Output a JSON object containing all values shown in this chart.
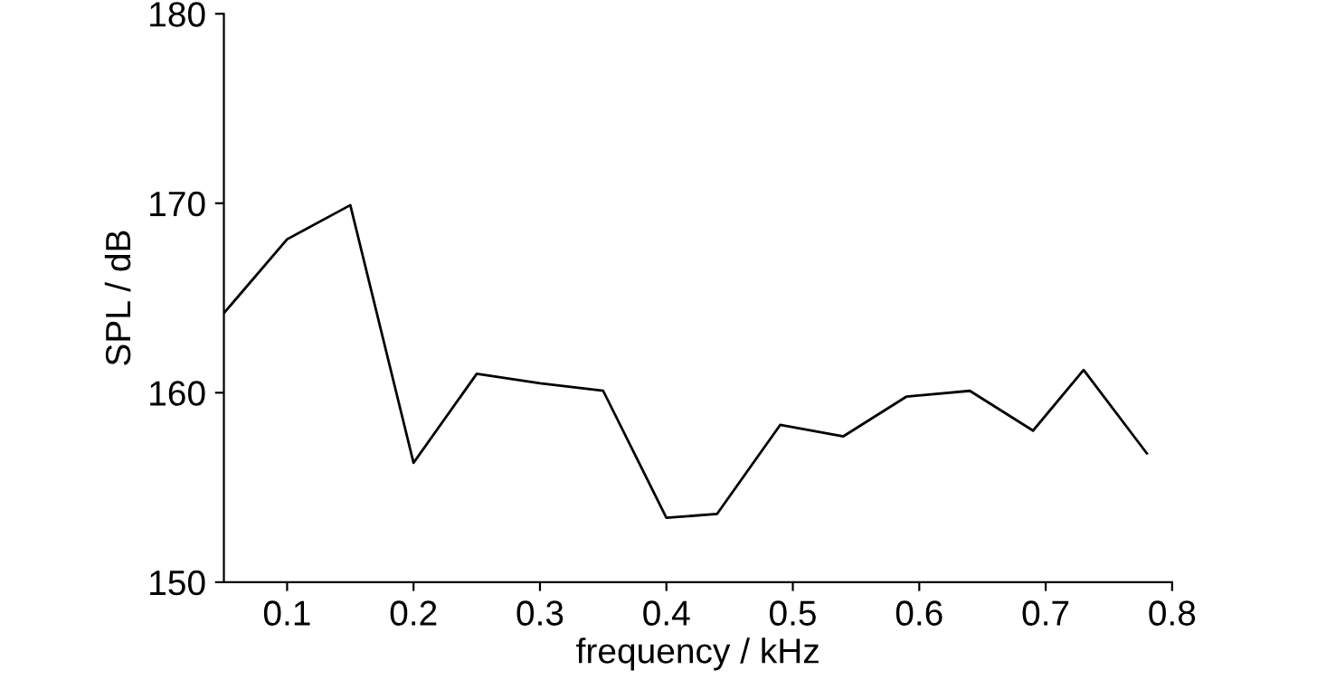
{
  "chart_data": {
    "type": "line",
    "xlabel": "frequency / kHz",
    "ylabel": "SPL / dB",
    "x": [
      0.05,
      0.1,
      0.15,
      0.2,
      0.25,
      0.3,
      0.35,
      0.4,
      0.44,
      0.49,
      0.54,
      0.59,
      0.64,
      0.69,
      0.73,
      0.78
    ],
    "series": [
      {
        "color": "#000000",
        "values": [
          164.2,
          168.1,
          169.9,
          156.3,
          161.0,
          160.5,
          160.1,
          153.4,
          153.6,
          158.3,
          157.7,
          159.8,
          160.1,
          158.0,
          161.2,
          156.8
        ]
      }
    ],
    "xlim": [
      0.05,
      0.8
    ],
    "xticks": [
      0.1,
      0.2,
      0.3,
      0.4,
      0.5,
      0.6,
      0.7,
      0.8
    ],
    "ylim": [
      150,
      180
    ],
    "yticks": [
      150,
      160,
      170,
      180
    ],
    "grid": false,
    "marker": "none",
    "line_style": "solid"
  }
}
